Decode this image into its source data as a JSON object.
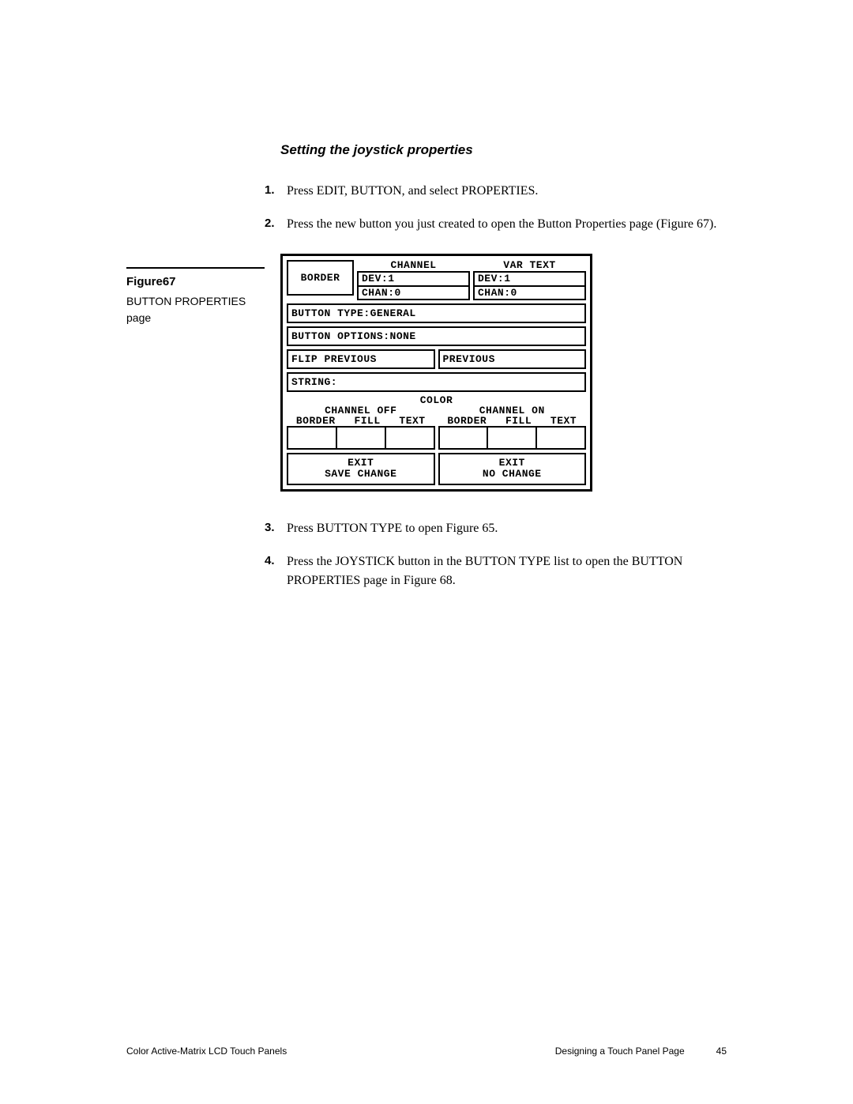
{
  "section_title": "Setting the joystick properties",
  "steps_before": [
    {
      "num": "1.",
      "text": "Press EDIT, BUTTON, and select PROPERTIES."
    },
    {
      "num": "2.",
      "text": "Press the new button you just created to open the Button Properties page (Figure 67)."
    }
  ],
  "sidebar": {
    "label": "Figure67",
    "desc_line1": "BUTTON PROPERTIES",
    "desc_line2": "page"
  },
  "figure": {
    "border_label": "BORDER",
    "channel": {
      "title": "CHANNEL",
      "dev": "DEV:1",
      "chan": "CHAN:0"
    },
    "var_text": {
      "title": "VAR TEXT",
      "dev": "DEV:1",
      "chan": "CHAN:0"
    },
    "button_type": "BUTTON TYPE:GENERAL",
    "button_options": "BUTTON OPTIONS:NONE",
    "flip_previous": "FLIP PREVIOUS",
    "previous": "PREVIOUS",
    "string": "STRING:",
    "color_label": "COLOR",
    "channel_off": "CHANNEL OFF",
    "channel_on": "CHANNEL ON",
    "col_border": "BORDER",
    "col_fill": "FILL",
    "col_text": "TEXT",
    "exit_save_1": "EXIT",
    "exit_save_2": "SAVE CHANGE",
    "exit_no_1": "EXIT",
    "exit_no_2": "NO CHANGE",
    "border_color": "#000000",
    "background": "#ffffff"
  },
  "steps_after": [
    {
      "num": "3.",
      "text": "Press BUTTON TYPE to open Figure 65."
    },
    {
      "num": "4.",
      "text": "Press the JOYSTICK button in the BUTTON TYPE list to open the BUTTON PROPERTIES page in Figure 68."
    }
  ],
  "footer": {
    "left": "Color Active-Matrix LCD Touch Panels",
    "right_text": "Designing a Touch Panel Page",
    "page": "45"
  }
}
